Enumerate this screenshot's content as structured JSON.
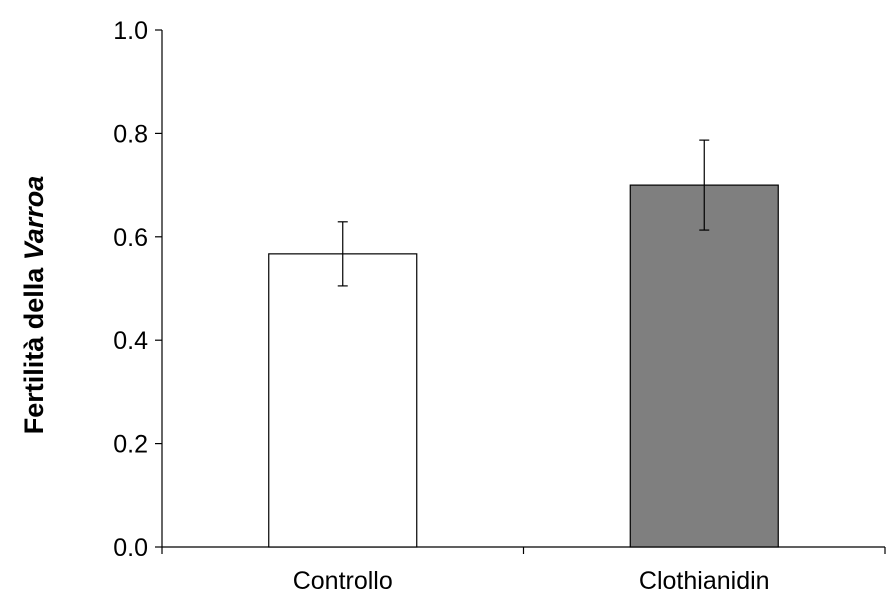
{
  "chart_data": {
    "type": "bar",
    "categories": [
      "Controllo",
      "Clothianidin"
    ],
    "values": [
      0.567,
      0.7
    ],
    "errors": [
      0.062,
      0.087
    ],
    "bar_colors": [
      "#ffffff",
      "#7f7f7f"
    ],
    "title": "",
    "xlabel": "",
    "ylabel": {
      "prefix": "Fertilità della ",
      "italic": "Varroa"
    },
    "ylim": [
      0,
      1.0
    ],
    "yticks": [
      "0.0",
      "0.2",
      "0.4",
      "0.6",
      "0.8",
      "1.0"
    ],
    "grid": false,
    "legend": "none"
  }
}
